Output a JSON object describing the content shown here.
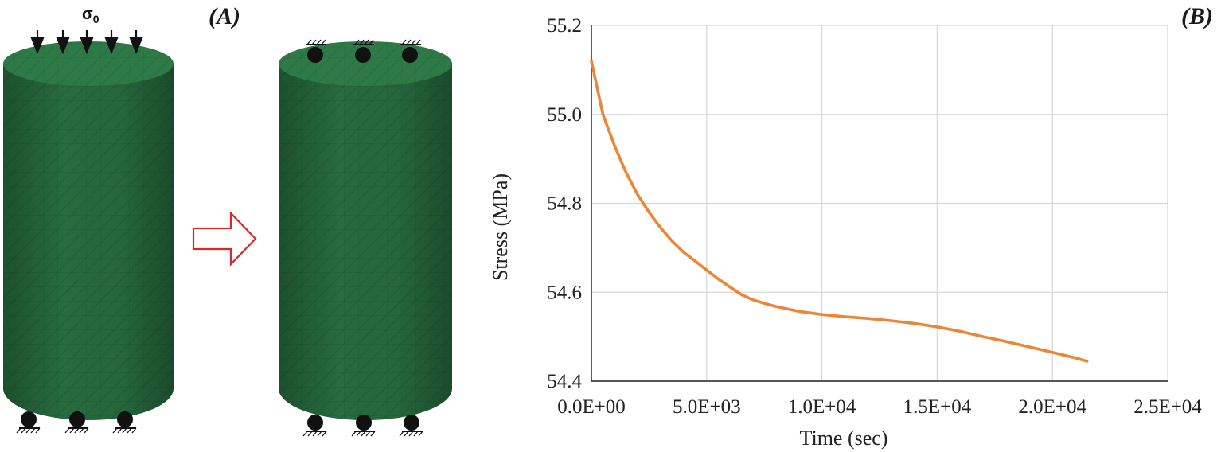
{
  "panels": {
    "a_label": "(A)",
    "b_label": "(B)",
    "load_symbol": "σ",
    "load_subscript": "0"
  },
  "colors": {
    "mesh_body": "#276b3e",
    "mesh_top": "#2e7a47",
    "mesh_line": "#1e5732",
    "arrow_outline": "#d42a2a",
    "curve": "#ee8434",
    "grid": "#d9d9d9",
    "support": "#111111"
  },
  "icons": {
    "load_arrows": "down-arrow-icon",
    "transition": "right-arrow-outline-icon",
    "roller_support": "roller-support-icon",
    "fixed_support": "fixed-hatch-support-icon"
  },
  "chart_data": {
    "type": "line",
    "title": "",
    "xlabel": "Time (sec)",
    "ylabel": "Stress (MPa)",
    "xlim": [
      0,
      25000
    ],
    "ylim": [
      54.4,
      55.2
    ],
    "xticks": [
      0,
      5000,
      10000,
      15000,
      20000,
      25000
    ],
    "xtick_labels": [
      "0.0E+00",
      "5.0E+03",
      "1.0E+04",
      "1.5E+04",
      "2.0E+04",
      "2.5E+04"
    ],
    "yticks": [
      54.4,
      54.6,
      54.8,
      55.0,
      55.2
    ],
    "ytick_labels": [
      "54.4",
      "54.6",
      "54.8",
      "55.0",
      "55.2"
    ],
    "grid": true,
    "series": [
      {
        "x": [
          0,
          500,
          1000,
          1500,
          2000,
          2500,
          3000,
          3500,
          4000,
          4500,
          5000,
          5500,
          6000,
          6500,
          7000,
          7500,
          8000,
          9000,
          10000,
          11000,
          12000,
          13000,
          14000,
          15000,
          16000,
          17000,
          18000,
          19000,
          20000,
          21000,
          21500
        ],
        "y": [
          55.12,
          55.0,
          54.93,
          54.87,
          54.82,
          54.78,
          54.745,
          54.715,
          54.69,
          54.67,
          54.65,
          54.63,
          54.612,
          54.595,
          54.583,
          54.575,
          54.568,
          54.557,
          54.55,
          54.545,
          54.541,
          54.536,
          54.53,
          54.522,
          54.512,
          54.5,
          54.489,
          54.477,
          54.465,
          54.452,
          54.445
        ]
      }
    ]
  }
}
